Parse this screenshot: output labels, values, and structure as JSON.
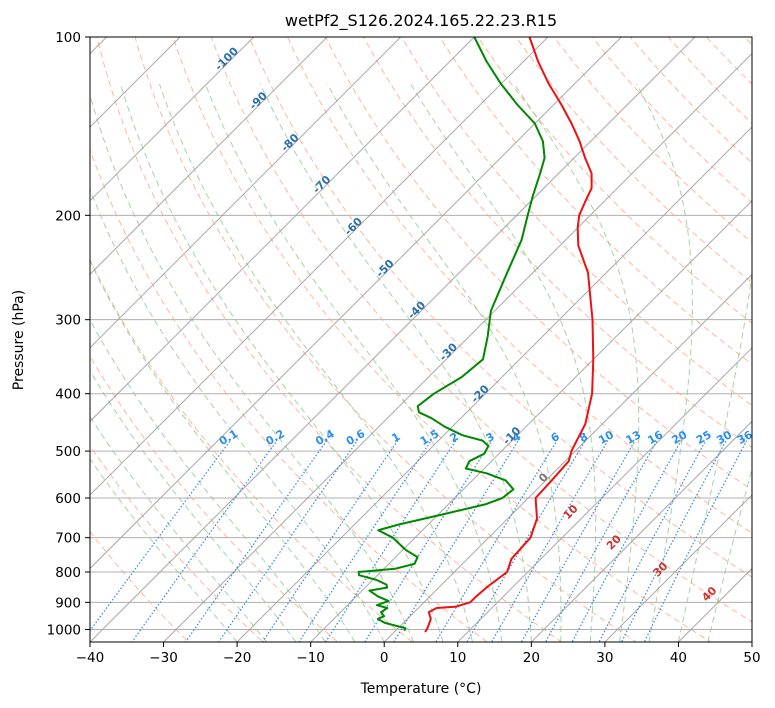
{
  "chart_data": {
    "type": "line",
    "subtype": "skew-t log-p diagram",
    "title": "wetPf2_S126.2024.165.22.23.R15",
    "xlabel": "Temperature (°C)",
    "ylabel": "Pressure (hPa)",
    "xlim": [
      -40,
      50
    ],
    "ylim": [
      1050,
      100
    ],
    "y_scale": "log",
    "x_ticks": [
      -40,
      -30,
      -20,
      -10,
      0,
      10,
      20,
      30,
      40,
      50
    ],
    "y_ticks": [
      100,
      200,
      300,
      400,
      500,
      600,
      700,
      800,
      900,
      1000
    ],
    "grid": true,
    "colors": {
      "temperature": "#ee1111",
      "dewpoint": "#008800",
      "isotherms": "#9e9e9e",
      "dry_adiabats": "#f7a080",
      "moist_adiabats": "#8fc88f",
      "mixing_ratio": "#3388dd",
      "isotherm_labels": "#2a6fb0",
      "mixing_ratio_labels": "#2b8ff0",
      "theta_labels": "#d03030"
    },
    "series": [
      {
        "name": "Temperature",
        "points": [
          {
            "p": 1010,
            "t": 4.2
          },
          {
            "p": 995,
            "t": 4.0
          },
          {
            "p": 960,
            "t": 3.2
          },
          {
            "p": 935,
            "t": 2.0
          },
          {
            "p": 920,
            "t": 2.5
          },
          {
            "p": 915,
            "t": 5.0
          },
          {
            "p": 900,
            "t": 6.3
          },
          {
            "p": 880,
            "t": 6.3
          },
          {
            "p": 850,
            "t": 6.5
          },
          {
            "p": 800,
            "t": 7.2
          },
          {
            "p": 760,
            "t": 6.0
          },
          {
            "p": 700,
            "t": 5.7
          },
          {
            "p": 650,
            "t": 4.0
          },
          {
            "p": 600,
            "t": 1.0
          },
          {
            "p": 560,
            "t": 0.8
          },
          {
            "p": 520,
            "t": 0.5
          },
          {
            "p": 500,
            "t": -0.5
          },
          {
            "p": 450,
            "t": -2.3
          },
          {
            "p": 400,
            "t": -5.5
          },
          {
            "p": 350,
            "t": -10.0
          },
          {
            "p": 300,
            "t": -15.5
          },
          {
            "p": 250,
            "t": -22.5
          },
          {
            "p": 225,
            "t": -27.5
          },
          {
            "p": 210,
            "t": -30.0
          },
          {
            "p": 200,
            "t": -31.5
          },
          {
            "p": 190,
            "t": -32.5
          },
          {
            "p": 180,
            "t": -33.5
          },
          {
            "p": 170,
            "t": -35.5
          },
          {
            "p": 160,
            "t": -38.5
          },
          {
            "p": 150,
            "t": -41.5
          },
          {
            "p": 140,
            "t": -45.0
          },
          {
            "p": 130,
            "t": -49.0
          },
          {
            "p": 120,
            "t": -53.5
          },
          {
            "p": 110,
            "t": -58.0
          },
          {
            "p": 100,
            "t": -62.5
          }
        ]
      },
      {
        "name": "Dewpoint",
        "points": [
          {
            "p": 1005,
            "t": 1.2
          },
          {
            "p": 995,
            "t": 1.0
          },
          {
            "p": 975,
            "t": -2.5
          },
          {
            "p": 960,
            "t": -4.0
          },
          {
            "p": 950,
            "t": -3.5
          },
          {
            "p": 935,
            "t": -4.5
          },
          {
            "p": 920,
            "t": -4.2
          },
          {
            "p": 910,
            "t": -6.0
          },
          {
            "p": 895,
            "t": -5.0
          },
          {
            "p": 880,
            "t": -7.0
          },
          {
            "p": 860,
            "t": -9.0
          },
          {
            "p": 850,
            "t": -7.0
          },
          {
            "p": 840,
            "t": -7.5
          },
          {
            "p": 825,
            "t": -9.5
          },
          {
            "p": 810,
            "t": -12.5
          },
          {
            "p": 800,
            "t": -13.0
          },
          {
            "p": 790,
            "t": -8.5
          },
          {
            "p": 775,
            "t": -6.5
          },
          {
            "p": 755,
            "t": -7.0
          },
          {
            "p": 735,
            "t": -9.5
          },
          {
            "p": 715,
            "t": -11.5
          },
          {
            "p": 700,
            "t": -13.0
          },
          {
            "p": 680,
            "t": -16.0
          },
          {
            "p": 665,
            "t": -14.0
          },
          {
            "p": 640,
            "t": -9.5
          },
          {
            "p": 615,
            "t": -5.0
          },
          {
            "p": 600,
            "t": -3.5
          },
          {
            "p": 580,
            "t": -3.2
          },
          {
            "p": 560,
            "t": -5.5
          },
          {
            "p": 545,
            "t": -9.0
          },
          {
            "p": 535,
            "t": -12.5
          },
          {
            "p": 520,
            "t": -13.0
          },
          {
            "p": 505,
            "t": -12.0
          },
          {
            "p": 490,
            "t": -12.5
          },
          {
            "p": 480,
            "t": -14.0
          },
          {
            "p": 470,
            "t": -17.5
          },
          {
            "p": 455,
            "t": -21.0
          },
          {
            "p": 440,
            "t": -24.0
          },
          {
            "p": 430,
            "t": -26.5
          },
          {
            "p": 420,
            "t": -27.5
          },
          {
            "p": 400,
            "t": -27.0
          },
          {
            "p": 375,
            "t": -25.5
          },
          {
            "p": 350,
            "t": -25.0
          },
          {
            "p": 320,
            "t": -27.5
          },
          {
            "p": 290,
            "t": -30.5
          },
          {
            "p": 250,
            "t": -33.5
          },
          {
            "p": 220,
            "t": -36.0
          },
          {
            "p": 200,
            "t": -38.5
          },
          {
            "p": 185,
            "t": -40.5
          },
          {
            "p": 170,
            "t": -42.5
          },
          {
            "p": 160,
            "t": -44.0
          },
          {
            "p": 150,
            "t": -46.5
          },
          {
            "p": 140,
            "t": -50.0
          },
          {
            "p": 130,
            "t": -55.0
          },
          {
            "p": 120,
            "t": -60.0
          },
          {
            "p": 110,
            "t": -65.0
          },
          {
            "p": 100,
            "t": -70.0
          }
        ]
      }
    ],
    "isotherm_labels": [
      {
        "text": "-100",
        "t": -100
      },
      {
        "text": "-90",
        "t": -90
      },
      {
        "text": "-80",
        "t": -80
      },
      {
        "text": "-70",
        "t": -70
      },
      {
        "text": "-60",
        "t": -60
      },
      {
        "text": "-50",
        "t": -50
      },
      {
        "text": "-40",
        "t": -40
      },
      {
        "text": "-30",
        "t": -30
      },
      {
        "text": "-20",
        "t": -20
      },
      {
        "text": "-10",
        "t": -10
      },
      {
        "text": "0",
        "t": 0
      }
    ],
    "mixing_ratio_labels": [
      "0.1",
      "0.2",
      "0.4",
      "0.6",
      "1",
      "1.5",
      "2",
      "3",
      "4",
      "6",
      "8",
      "10",
      "13",
      "16",
      "20",
      "25",
      "30",
      "36"
    ],
    "theta_labels": [
      {
        "text": "10",
        "t": 10
      },
      {
        "text": "20",
        "t": 20
      },
      {
        "text": "30",
        "t": 30
      },
      {
        "text": "40",
        "t": 40
      }
    ]
  }
}
